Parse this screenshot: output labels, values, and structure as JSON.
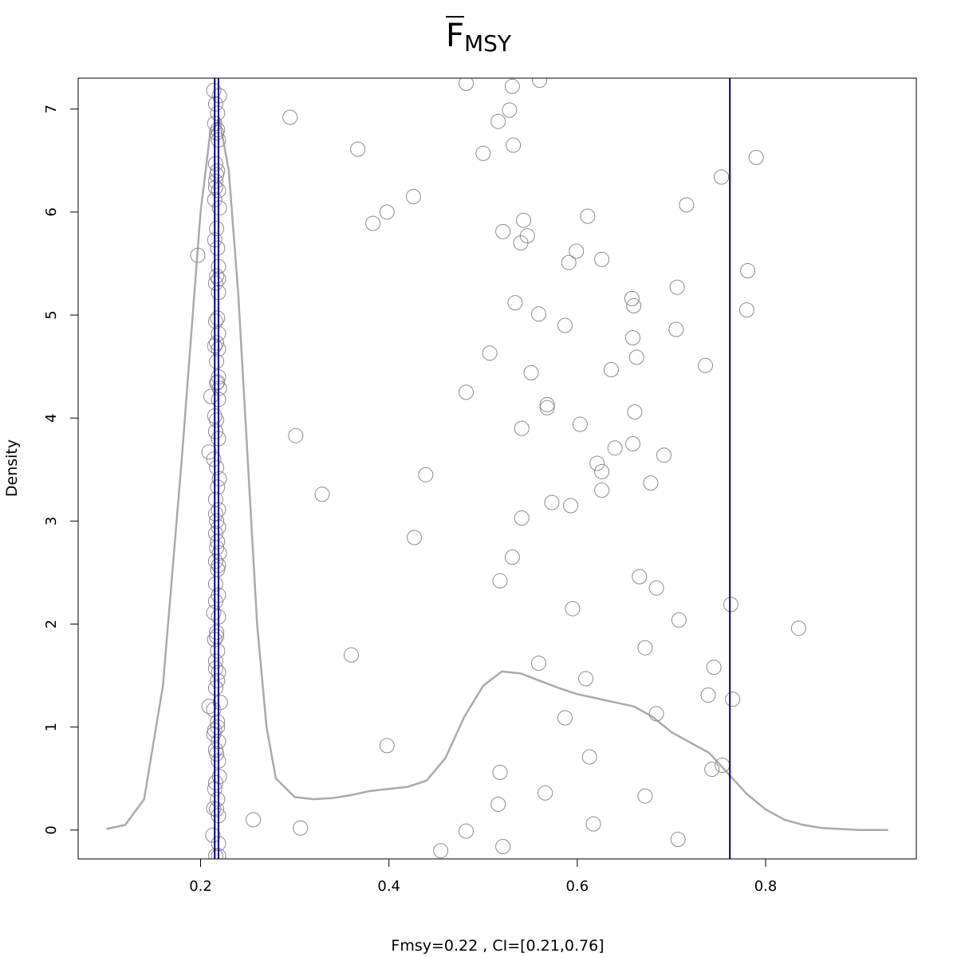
{
  "title": {
    "main": "F",
    "sub": "MSY"
  },
  "xlabel": "Fmsy=0.22 , CI=[0.21,0.76]",
  "ylabel": "Density",
  "chart_data": {
    "type": "scatter",
    "title": "F̄ MSY",
    "xlabel": "Fmsy=0.22 , CI=[0.21,0.76]",
    "ylabel": "Density",
    "xlim": [
      0.07,
      0.96
    ],
    "ylim": [
      -0.28,
      7.3
    ],
    "grid": false,
    "x_ticks": [
      0.2,
      0.4,
      0.6,
      0.8
    ],
    "x_tick_labels": [
      "0.2",
      "0.4",
      "0.6",
      "0.8"
    ],
    "y_ticks": [
      0,
      1,
      2,
      3,
      4,
      5,
      6,
      7
    ],
    "y_tick_labels": [
      "0",
      "1",
      "2",
      "3",
      "4",
      "5",
      "6",
      "7"
    ],
    "vlines": [
      0.215,
      0.219,
      0.762
    ],
    "vline_color": "#00007f",
    "density_color": "#aaaaaa",
    "point_color": "#8c8c8c",
    "density": {
      "x": [
        0.1,
        0.12,
        0.14,
        0.16,
        0.18,
        0.2,
        0.21,
        0.22,
        0.23,
        0.24,
        0.25,
        0.26,
        0.27,
        0.28,
        0.3,
        0.32,
        0.34,
        0.36,
        0.38,
        0.4,
        0.42,
        0.44,
        0.46,
        0.48,
        0.5,
        0.52,
        0.54,
        0.56,
        0.58,
        0.6,
        0.62,
        0.64,
        0.66,
        0.68,
        0.7,
        0.72,
        0.74,
        0.76,
        0.78,
        0.8,
        0.82,
        0.84,
        0.86,
        0.88,
        0.9,
        0.93
      ],
      "y": [
        0.01,
        0.05,
        0.3,
        1.4,
        3.6,
        6.0,
        6.75,
        6.9,
        6.4,
        5.2,
        3.6,
        2.0,
        1.0,
        0.5,
        0.32,
        0.3,
        0.31,
        0.34,
        0.38,
        0.4,
        0.42,
        0.48,
        0.7,
        1.1,
        1.4,
        1.54,
        1.52,
        1.45,
        1.38,
        1.32,
        1.28,
        1.24,
        1.2,
        1.1,
        0.95,
        0.85,
        0.75,
        0.55,
        0.35,
        0.2,
        0.1,
        0.05,
        0.02,
        0.01,
        0.0,
        0.0
      ]
    },
    "points": [
      [
        0.295,
        6.92
      ],
      [
        0.367,
        6.61
      ],
      [
        0.398,
        6.0
      ],
      [
        0.383,
        5.89
      ],
      [
        0.426,
        6.15
      ],
      [
        0.197,
        5.58
      ],
      [
        0.301,
        3.83
      ],
      [
        0.439,
        3.45
      ],
      [
        0.329,
        3.26
      ],
      [
        0.427,
        2.84
      ],
      [
        0.36,
        1.7
      ],
      [
        0.398,
        0.82
      ],
      [
        0.256,
        0.1
      ],
      [
        0.306,
        0.02
      ],
      [
        0.455,
        -0.2
      ],
      [
        0.482,
        -0.01
      ],
      [
        0.521,
        -0.16
      ],
      [
        0.482,
        4.25
      ],
      [
        0.507,
        4.63
      ],
      [
        0.5,
        6.57
      ],
      [
        0.516,
        6.88
      ],
      [
        0.528,
        6.99
      ],
      [
        0.531,
        7.22
      ],
      [
        0.482,
        7.25
      ],
      [
        0.56,
        7.28
      ],
      [
        0.532,
        6.65
      ],
      [
        0.543,
        5.92
      ],
      [
        0.521,
        5.81
      ],
      [
        0.547,
        5.77
      ],
      [
        0.54,
        5.7
      ],
      [
        0.534,
        5.12
      ],
      [
        0.559,
        5.01
      ],
      [
        0.551,
        4.44
      ],
      [
        0.568,
        4.13
      ],
      [
        0.568,
        4.1
      ],
      [
        0.541,
        3.9
      ],
      [
        0.573,
        3.18
      ],
      [
        0.541,
        3.03
      ],
      [
        0.531,
        2.65
      ],
      [
        0.518,
        2.42
      ],
      [
        0.559,
        1.62
      ],
      [
        0.518,
        0.56
      ],
      [
        0.516,
        0.25
      ],
      [
        0.566,
        0.36
      ],
      [
        0.611,
        5.96
      ],
      [
        0.599,
        5.62
      ],
      [
        0.591,
        5.51
      ],
      [
        0.626,
        5.54
      ],
      [
        0.587,
        4.9
      ],
      [
        0.603,
        3.94
      ],
      [
        0.621,
        3.56
      ],
      [
        0.626,
        3.48
      ],
      [
        0.626,
        3.3
      ],
      [
        0.593,
        3.15
      ],
      [
        0.595,
        2.15
      ],
      [
        0.609,
        1.47
      ],
      [
        0.587,
        1.09
      ],
      [
        0.613,
        0.71
      ],
      [
        0.617,
        0.06
      ],
      [
        0.636,
        4.47
      ],
      [
        0.64,
        3.71
      ],
      [
        0.658,
        5.16
      ],
      [
        0.66,
        5.09
      ],
      [
        0.659,
        4.78
      ],
      [
        0.663,
        4.59
      ],
      [
        0.661,
        4.06
      ],
      [
        0.659,
        3.75
      ],
      [
        0.692,
        3.64
      ],
      [
        0.678,
        3.37
      ],
      [
        0.666,
        2.46
      ],
      [
        0.684,
        2.35
      ],
      [
        0.672,
        1.77
      ],
      [
        0.684,
        1.13
      ],
      [
        0.672,
        0.33
      ],
      [
        0.707,
        -0.09
      ],
      [
        0.706,
        5.27
      ],
      [
        0.705,
        4.86
      ],
      [
        0.708,
        2.04
      ],
      [
        0.716,
        6.07
      ],
      [
        0.753,
        6.34
      ],
      [
        0.79,
        6.53
      ],
      [
        0.781,
        5.43
      ],
      [
        0.78,
        5.05
      ],
      [
        0.736,
        4.51
      ],
      [
        0.763,
        2.19
      ],
      [
        0.745,
        1.58
      ],
      [
        0.739,
        1.31
      ],
      [
        0.765,
        1.27
      ],
      [
        0.743,
        0.59
      ],
      [
        0.754,
        0.63
      ],
      [
        0.835,
        1.96
      ],
      [
        0.214,
        7.18
      ],
      [
        0.22,
        7.13
      ],
      [
        0.216,
        7.05
      ],
      [
        0.218,
        6.96
      ],
      [
        0.215,
        6.86
      ],
      [
        0.217,
        6.77
      ],
      [
        0.219,
        6.7
      ],
      [
        0.216,
        6.47
      ],
      [
        0.218,
        6.4
      ],
      [
        0.216,
        6.3
      ],
      [
        0.219,
        6.21
      ],
      [
        0.215,
        6.12
      ],
      [
        0.22,
        6.04
      ],
      [
        0.217,
        5.84
      ],
      [
        0.215,
        5.73
      ],
      [
        0.218,
        5.65
      ],
      [
        0.219,
        5.47
      ],
      [
        0.217,
        5.38
      ],
      [
        0.216,
        5.31
      ],
      [
        0.219,
        5.22
      ],
      [
        0.218,
        4.97
      ],
      [
        0.216,
        4.94
      ],
      [
        0.219,
        4.82
      ],
      [
        0.217,
        4.73
      ],
      [
        0.219,
        4.67
      ],
      [
        0.217,
        4.55
      ],
      [
        0.219,
        4.4
      ],
      [
        0.217,
        4.34
      ],
      [
        0.22,
        4.29
      ],
      [
        0.219,
        4.18
      ],
      [
        0.211,
        4.21
      ],
      [
        0.215,
        4.02
      ],
      [
        0.217,
        3.98
      ],
      [
        0.216,
        3.87
      ],
      [
        0.219,
        3.8
      ],
      [
        0.209,
        3.67
      ],
      [
        0.214,
        3.6
      ],
      [
        0.217,
        3.52
      ],
      [
        0.22,
        3.41
      ],
      [
        0.218,
        3.33
      ],
      [
        0.216,
        3.21
      ],
      [
        0.219,
        3.11
      ],
      [
        0.217,
        3.0
      ],
      [
        0.219,
        2.94
      ],
      [
        0.216,
        2.88
      ],
      [
        0.218,
        2.8
      ],
      [
        0.217,
        2.74
      ],
      [
        0.22,
        2.69
      ],
      [
        0.216,
        2.61
      ],
      [
        0.218,
        2.53
      ],
      [
        0.216,
        2.39
      ],
      [
        0.219,
        2.28
      ],
      [
        0.216,
        2.22
      ],
      [
        0.214,
        2.11
      ],
      [
        0.219,
        2.07
      ],
      [
        0.217,
        1.92
      ],
      [
        0.215,
        1.85
      ],
      [
        0.218,
        1.74
      ],
      [
        0.216,
        1.64
      ],
      [
        0.219,
        1.53
      ],
      [
        0.218,
        1.45
      ],
      [
        0.216,
        1.38
      ],
      [
        0.221,
        1.24
      ],
      [
        0.209,
        1.2
      ],
      [
        0.214,
        1.17
      ],
      [
        0.218,
        1.05
      ],
      [
        0.215,
        0.97
      ],
      [
        0.214,
        0.93
      ],
      [
        0.219,
        0.86
      ],
      [
        0.216,
        0.78
      ],
      [
        0.219,
        0.67
      ],
      [
        0.22,
        0.52
      ],
      [
        0.216,
        0.46
      ],
      [
        0.215,
        0.4
      ],
      [
        0.218,
        0.3
      ],
      [
        0.214,
        0.21
      ],
      [
        0.219,
        0.14
      ],
      [
        0.217,
        0.2
      ],
      [
        0.213,
        -0.05
      ],
      [
        0.219,
        -0.13
      ],
      [
        0.216,
        -0.25
      ],
      [
        0.219,
        -0.25
      ],
      [
        0.218,
        6.8
      ],
      [
        0.217,
        6.36
      ],
      [
        0.216,
        6.24
      ],
      [
        0.219,
        5.35
      ],
      [
        0.215,
        4.7
      ],
      [
        0.218,
        4.35
      ],
      [
        0.216,
        3.07
      ],
      [
        0.219,
        2.57
      ],
      [
        0.217,
        1.88
      ],
      [
        0.216,
        1.57
      ],
      [
        0.218,
        1.0
      ],
      [
        0.217,
        0.74
      ]
    ]
  }
}
